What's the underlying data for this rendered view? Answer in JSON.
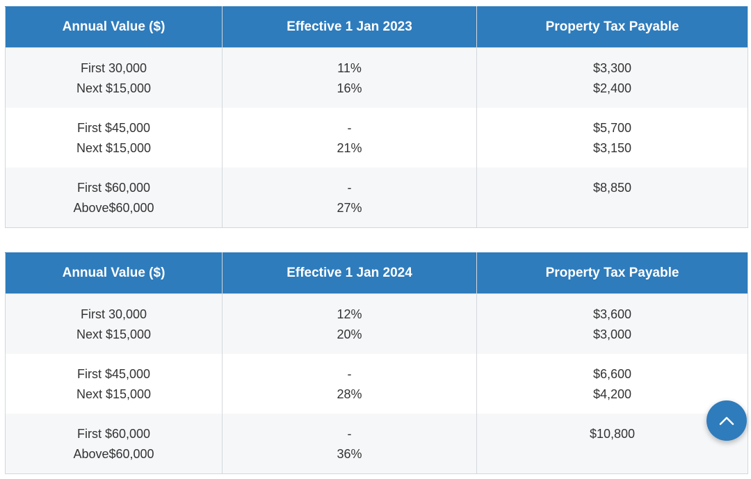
{
  "tables": [
    {
      "headers": [
        "Annual Value ($)",
        "Effective 1 Jan 2023",
        "Property Tax Payable"
      ],
      "rows": [
        {
          "annual": [
            "First 30,000",
            "Next $15,000"
          ],
          "rate": [
            "11%",
            "16%"
          ],
          "tax": [
            "$3,300",
            "$2,400"
          ]
        },
        {
          "annual": [
            "First $45,000",
            "Next $15,000"
          ],
          "rate": [
            "-",
            "21%"
          ],
          "tax": [
            "$5,700",
            "$3,150"
          ]
        },
        {
          "annual": [
            "First $60,000",
            "Above$60,000"
          ],
          "rate": [
            "-",
            "27%"
          ],
          "tax": [
            "$8,850",
            ""
          ]
        }
      ]
    },
    {
      "headers": [
        "Annual Value ($)",
        "Effective 1 Jan 2024",
        "Property Tax Payable"
      ],
      "rows": [
        {
          "annual": [
            "First 30,000",
            "Next $15,000"
          ],
          "rate": [
            "12%",
            "20%"
          ],
          "tax": [
            "$3,600",
            "$3,000"
          ]
        },
        {
          "annual": [
            "First $45,000",
            "Next $15,000"
          ],
          "rate": [
            "-",
            "28%"
          ],
          "tax": [
            "$6,600",
            "$4,200"
          ]
        },
        {
          "annual": [
            "First $60,000",
            "Above$60,000"
          ],
          "rate": [
            "-",
            "36%"
          ],
          "tax": [
            "$10,800",
            ""
          ]
        }
      ]
    }
  ],
  "scroll_top_button": {
    "icon": "chevron-up-icon",
    "color": "#2e7cbc"
  },
  "colors": {
    "header_bg": "#2e7cbc",
    "stripe_bg": "#f6f7f9",
    "border": "#d3d7db"
  }
}
